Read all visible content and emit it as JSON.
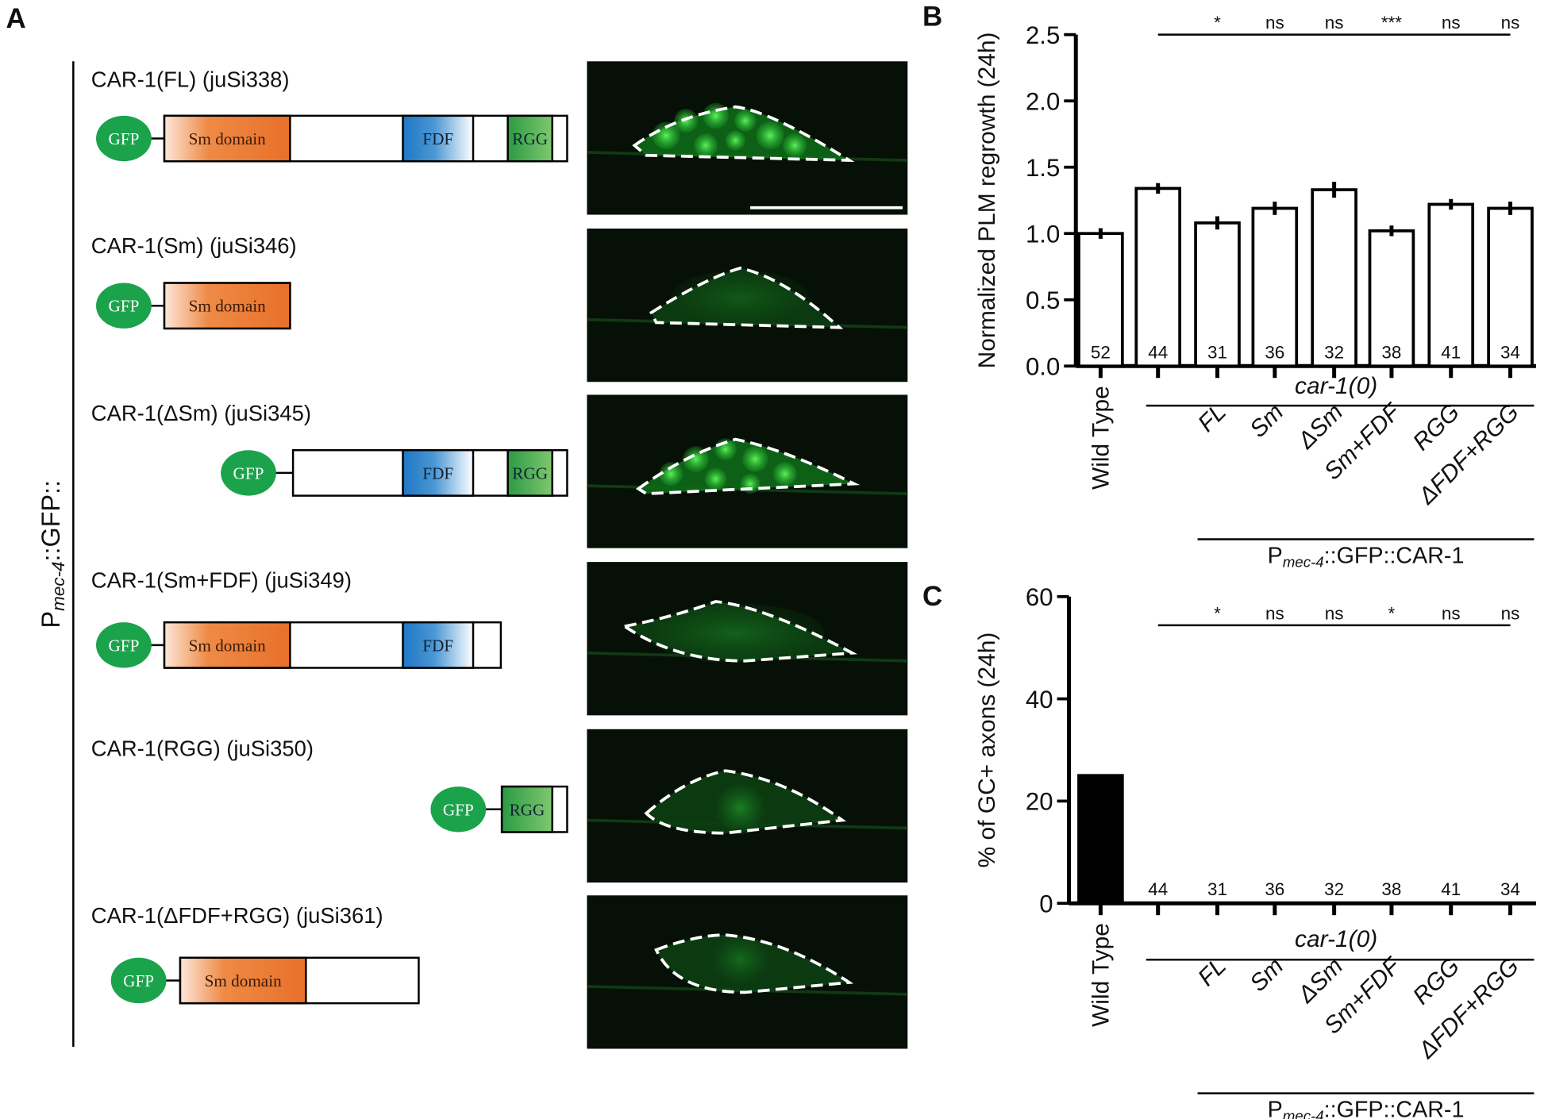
{
  "panel_a": {
    "label": "A",
    "vertical_label": {
      "prefix": "P",
      "subscript": "mec-4",
      "suffix": "::GFP::"
    },
    "constructs": [
      {
        "name": "CAR-1(FL) (juSi338)",
        "domains": [
          "GFP",
          "Sm domain",
          "FDF",
          "RGG"
        ]
      },
      {
        "name": "CAR-1(Sm) (juSi346)",
        "domains": [
          "GFP",
          "Sm domain"
        ]
      },
      {
        "name": "CAR-1(ΔSm) (juSi345)",
        "domains": [
          "GFP",
          "FDF",
          "RGG"
        ]
      },
      {
        "name": "CAR-1(Sm+FDF) (juSi349)",
        "domains": [
          "GFP",
          "Sm domain",
          "FDF"
        ]
      },
      {
        "name": "CAR-1(RGG) (juSi350)",
        "domains": [
          "GFP",
          "RGG"
        ]
      },
      {
        "name": "CAR-1(ΔFDF+RGG) (juSi361)",
        "domains": [
          "GFP",
          "Sm domain"
        ]
      }
    ]
  },
  "chart_data": [
    {
      "type": "bar",
      "label": "B",
      "ylabel": "Normalized PLM regrowth (24h)",
      "categories": [
        "Wild Type",
        null,
        "FL",
        "Sm",
        "ΔSm",
        "Sm+FDF",
        "RGG",
        "ΔFDF+RGG"
      ],
      "values": [
        1.0,
        1.34,
        1.08,
        1.19,
        1.33,
        1.02,
        1.22,
        1.19
      ],
      "errors": [
        0.04,
        0.04,
        0.05,
        0.05,
        0.06,
        0.04,
        0.04,
        0.05
      ],
      "n": [
        52,
        44,
        31,
        36,
        32,
        38,
        41,
        34
      ],
      "significance": [
        null,
        null,
        "*",
        "ns",
        "ns",
        "***",
        "ns",
        "ns"
      ],
      "group_labels": {
        "mutant": "car-1(0)",
        "transgene": {
          "prefix": "P",
          "subscript": "mec-4",
          "suffix": "::GFP::CAR-1"
        }
      },
      "color": "#ffffff",
      "ylim": [
        0,
        2.5
      ],
      "yticks": [
        {
          "value": 0,
          "label": "0.0"
        },
        0.5,
        {
          "value": 1,
          "label": "1.0"
        },
        1.5,
        {
          "value": 2,
          "label": "2.0"
        },
        2.5
      ]
    },
    {
      "type": "bar",
      "label": "C",
      "ylabel": "% of GC+ axons (24h)",
      "categories": [
        "Wild Type",
        null,
        "FL",
        "Sm",
        "ΔSm",
        "Sm+FDF",
        "RGG",
        "ΔFDF+RGG"
      ],
      "values": [
        25,
        0,
        0,
        0,
        0,
        0,
        0,
        0
      ],
      "n": [
        null,
        44,
        31,
        36,
        32,
        38,
        41,
        34
      ],
      "significance": [
        null,
        null,
        "*",
        "ns",
        "ns",
        "*",
        "ns",
        "ns"
      ],
      "group_labels": {
        "mutant": "car-1(0)",
        "transgene": {
          "prefix": "P",
          "subscript": "mec-4",
          "suffix": "::GFP::CAR-1"
        }
      },
      "color": "#000000",
      "ylim": [
        0,
        60
      ],
      "yticks": [
        0,
        20,
        40,
        60
      ]
    }
  ]
}
